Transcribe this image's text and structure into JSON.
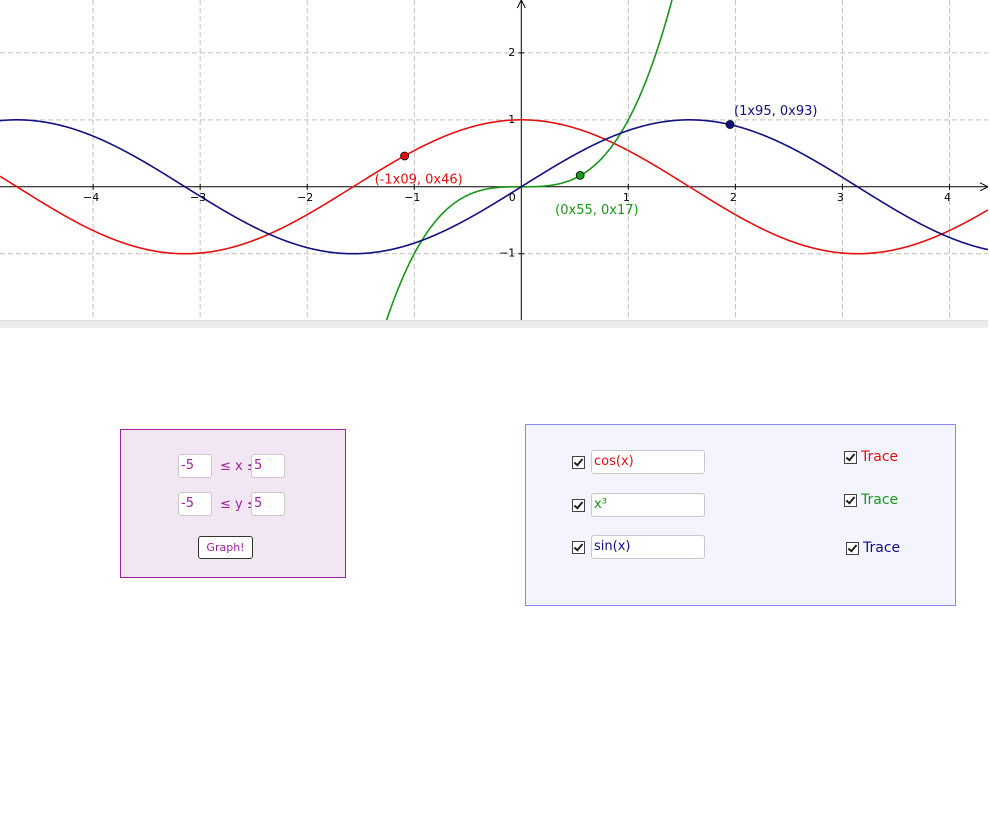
{
  "graph": {
    "xlim": [
      -4.87,
      4.36
    ],
    "ylim": [
      -1.99,
      2.79
    ],
    "xticks": [
      {
        "value": -4,
        "label": "−4"
      },
      {
        "value": -3,
        "label": "−3"
      },
      {
        "value": -2,
        "label": "−2"
      },
      {
        "value": -1,
        "label": "−1"
      },
      1,
      2,
      3,
      4
    ],
    "yticks": [
      {
        "value": -1,
        "label": "−1"
      },
      1,
      2
    ],
    "origin_label": "0",
    "grid": true,
    "points": [
      {
        "label": "(-1x09, 0x46)",
        "x": -1.09,
        "y": 0.46,
        "color": "#e31010"
      },
      {
        "label": "(0x55, 0x17)",
        "x": 0.55,
        "y": 0.17,
        "color": "#1a961a"
      },
      {
        "label": "(1x95, 0x93)",
        "x": 1.95,
        "y": 0.93,
        "color": "#101080"
      }
    ]
  },
  "range_panel": {
    "x_min": "-5",
    "x_label": "≤ x ≤",
    "x_max": "5",
    "y_min": "-5",
    "y_label": "≤ y ≤",
    "y_max": "5",
    "button": "Graph!"
  },
  "functions_panel": {
    "rows": [
      {
        "checked": true,
        "input": "cos(x)",
        "color": "#e31010",
        "trace": "Trace",
        "trace_checked": true
      },
      {
        "checked": true,
        "input": "x³",
        "color": "#1a961a",
        "trace": "Trace",
        "trace_checked": true
      },
      {
        "checked": true,
        "input": "sin(x)",
        "color": "#101080",
        "trace": "Trace",
        "trace_checked": true
      }
    ]
  }
}
